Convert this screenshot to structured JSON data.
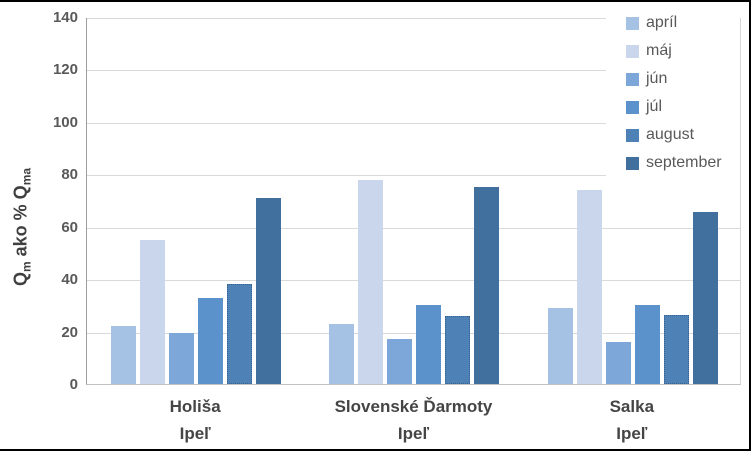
{
  "window": {
    "background": "#FFFFFF",
    "border_color": "#000000"
  },
  "chart_data": {
    "type": "bar",
    "title": "",
    "ylabel": {
      "plain": "Qm ako % Qma",
      "pre": "Q",
      "pre_sub": "m",
      "mid": " ako % ",
      "post": "Q",
      "post_sub": "ma"
    },
    "ylim": [
      0,
      140
    ],
    "ytick_step": 20,
    "yticks": [
      0,
      20,
      40,
      60,
      80,
      100,
      120,
      140
    ],
    "grid": true,
    "legend_position": "right-top",
    "categories": [
      {
        "station": "Holiša",
        "river": "Ipeľ"
      },
      {
        "station": "Slovenské Ďarmoty",
        "river": "Ipeľ"
      },
      {
        "station": "Salka",
        "river": "Ipeľ"
      }
    ],
    "series": [
      {
        "name": "apríl",
        "color": "#A5C1E3",
        "values": [
          22,
          23,
          29
        ]
      },
      {
        "name": "máj",
        "color": "#C9D6EB",
        "values": [
          55,
          78,
          74
        ]
      },
      {
        "name": "jún",
        "color": "#7DA7D8",
        "values": [
          19.5,
          17,
          16
        ]
      },
      {
        "name": "júl",
        "color": "#5B92CC",
        "values": [
          33,
          30,
          30
        ]
      },
      {
        "name": "august",
        "color": "#4E81B5",
        "values": [
          38,
          26,
          26.5
        ],
        "border_style": "dotted"
      },
      {
        "name": "september",
        "color": "#416F9E",
        "values": [
          71,
          75,
          65.5
        ]
      }
    ],
    "style": {
      "gridline_color": "#D9D9D9",
      "axis_line_color": "#9E9E9E",
      "tick_label_color": "#595959",
      "category_label_color": "#454545",
      "legend_text_color": "#595959"
    }
  }
}
